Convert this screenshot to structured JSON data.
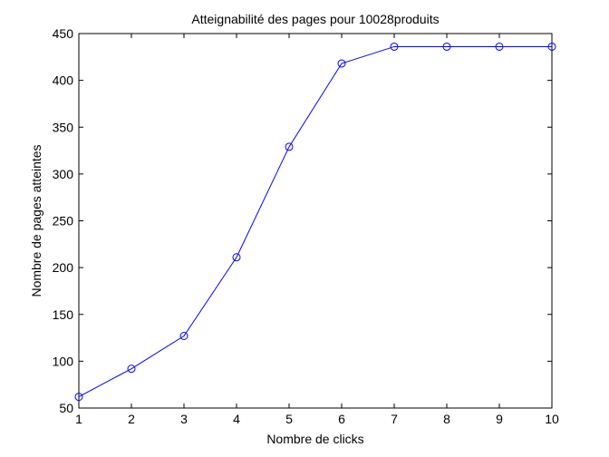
{
  "chart_data": {
    "type": "line",
    "title": "Atteignabilité des pages pour 10028produits",
    "xlabel": "Nombre de clicks",
    "ylabel": "Nombre de pages atteintes",
    "xlim": [
      1,
      10
    ],
    "ylim": [
      50,
      450
    ],
    "xticks": [
      1,
      2,
      3,
      4,
      5,
      6,
      7,
      8,
      9,
      10
    ],
    "yticks": [
      50,
      100,
      150,
      200,
      250,
      300,
      350,
      400,
      450
    ],
    "grid": false,
    "series": [
      {
        "color": "#0000ff",
        "marker": "circle",
        "x": [
          1,
          2,
          3,
          4,
          5,
          6,
          7,
          8,
          9,
          10
        ],
        "values": [
          62,
          92,
          127,
          211,
          329,
          418,
          436,
          436,
          436,
          436
        ]
      }
    ]
  }
}
